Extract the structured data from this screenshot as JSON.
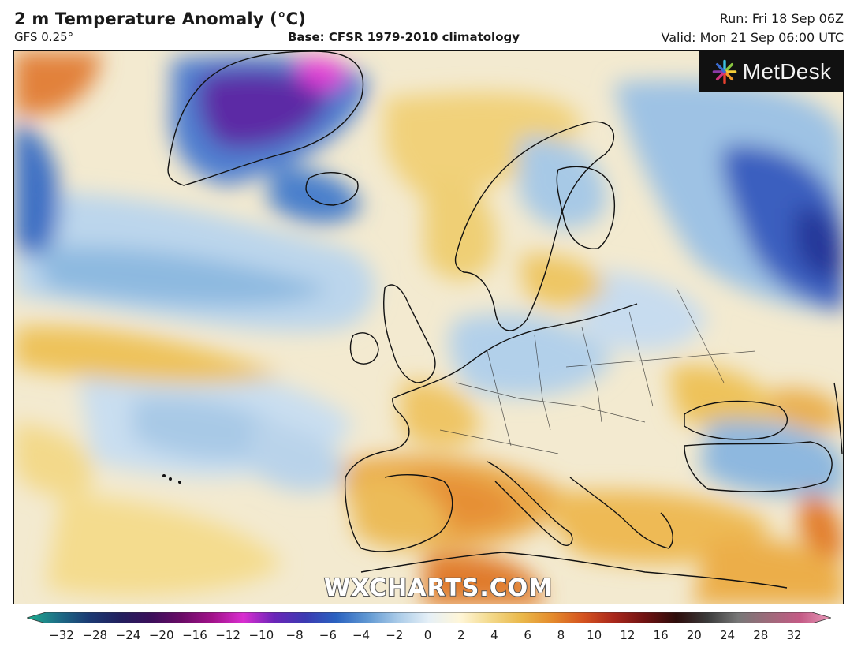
{
  "header": {
    "title": "2 m Temperature Anomaly (°C)",
    "model": "GFS 0.25°",
    "base": "Base: CFSR 1979-2010 climatology",
    "run": "Run: Fri 18 Sep 06Z",
    "valid": "Valid: Mon 21 Sep 06:00 UTC"
  },
  "logo": {
    "text": "MetDesk"
  },
  "watermark": "WXCHARTS.COM",
  "colorbar": {
    "ticks": [
      "−32",
      "−28",
      "−24",
      "−20",
      "−16",
      "−12",
      "−10",
      "−8",
      "−6",
      "−4",
      "−2",
      "0",
      "2",
      "4",
      "6",
      "8",
      "10",
      "12",
      "16",
      "20",
      "24",
      "28",
      "32"
    ],
    "colors": [
      "#1fae8e",
      "#1d6e86",
      "#1b3a73",
      "#22205e",
      "#3a0f5a",
      "#6a0b66",
      "#a2128a",
      "#d92ed0",
      "#6a25b8",
      "#3b3ab2",
      "#2a62c0",
      "#5f97d2",
      "#aacbe8",
      "#e6f0f7",
      "#fff6d8",
      "#f3d98a",
      "#eab84a",
      "#e48a2c",
      "#d4521f",
      "#a8261b",
      "#6e1212",
      "#2d0d0b",
      "#3a3a3a",
      "#777777",
      "#9e6a7a",
      "#c45a85",
      "#e89aba"
    ]
  },
  "map": {
    "colors": {
      "cold_light": "#dbe9f4",
      "cold_mid": "#a9cbe6",
      "cold_strong": "#5a95cf",
      "cold_deep": "#2b52b0",
      "cold_violet": "#5a1f9a",
      "cold_magenta": "#e02ad8",
      "warm_light": "#f6e4a6",
      "warm_mid": "#eec25a",
      "warm_strong": "#e7913a",
      "warm_hot": "#d45a22"
    }
  }
}
